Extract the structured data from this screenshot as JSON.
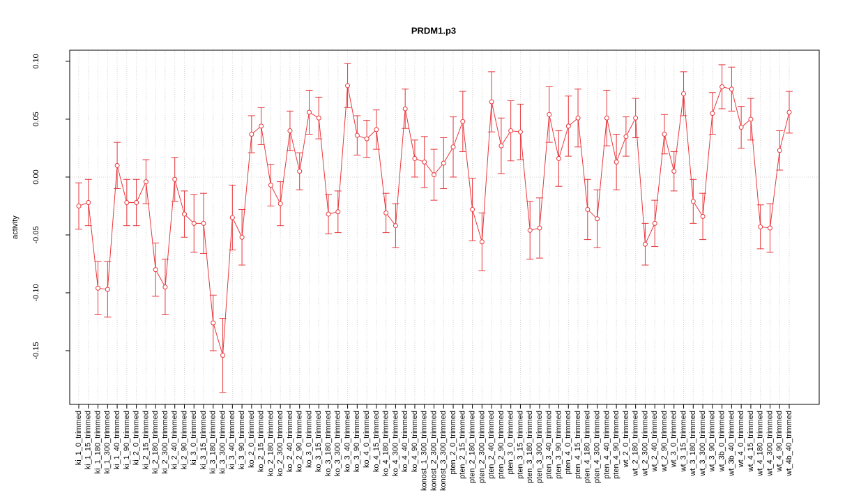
{
  "chart_data": {
    "type": "line",
    "title": "PRDM1.p3",
    "y_label": "activity",
    "categories": [
      "ki_1_0_trimmed",
      "ki_1_15_trimmed",
      "ki_1_180_trimmed",
      "ki_1_300_trimmed",
      "ki_1_40_trimmed",
      "ki_1_90_trimmed",
      "ki_2_0_trimmed",
      "ki_2_15_trimmed",
      "ki_2_180_trimmed",
      "ki_2_300_trimmed",
      "ki_2_40_trimmed",
      "ki_2_90_trimmed",
      "ki_3_0_trimmed",
      "ki_3_15_trimmed",
      "ki_3_180_trimmed",
      "ki_3_300_trimmed",
      "ki_3_40_trimmed",
      "ki_3_90_trimmed",
      "ko_2_0_trimmed",
      "ko_2_15_trimmed",
      "ko_2_180_trimmed",
      "ko_2_300_trimmed",
      "ko_2_40_trimmed",
      "ko_2_90_trimmed",
      "ko_3_0_trimmed",
      "ko_3_15_trimmed",
      "ko_3_180_trimmed",
      "ko_3_300_trimmed",
      "ko_3_40_trimmed",
      "ko_3_90_trimmed",
      "ko_4_0_trimmed",
      "ko_4_15_trimmed",
      "ko_4_180_trimmed",
      "ko_4_300_trimmed",
      "ko_4_40_trimmed",
      "ko_4_90_trimmed",
      "konost_1_300_trimmed",
      "konost_2_300_trimmed",
      "konost_3_300_trimmed",
      "pten_2_0_trimmed",
      "pten_2_15_trimmed",
      "pten_2_180_trimmed",
      "pten_2_300_trimmed",
      "pten_2_40_trimmed",
      "pten_2_90_trimmed",
      "pten_3_0_trimmed",
      "pten_3_15_trimmed",
      "pten_3_180_trimmed",
      "pten_3_300_trimmed",
      "pten_3_40_trimmed",
      "pten_3_90_trimmed",
      "pten_4_0_trimmed",
      "pten_4_15_trimmed",
      "pten_4_180_trimmed",
      "pten_4_300_trimmed",
      "pten_4_40_trimmed",
      "pten_4_90_trimmed",
      "wt_2_0_trimmed",
      "wt_2_180_trimmed",
      "wt_2_300_trimmed",
      "wt_2_40_trimmed",
      "wt_2_90_trimmed",
      "wt_3_0_trimmed",
      "wt_3_15_trimmed",
      "wt_3_180_trimmed",
      "wt_3_300_trimmed",
      "wt_3_90_trimmed",
      "wt_3b_0_trimmed",
      "wt_3b_40_trimmed",
      "wt_4_0_trimmed",
      "wt_4_15_trimmed",
      "wt_4_180_trimmed",
      "wt_4_300_trimmed",
      "wt_4_90_trimmed",
      "wt_4b_40_trimmed"
    ],
    "series": [
      {
        "color": "#e8363b",
        "values": [
          -0.025,
          -0.022,
          -0.096,
          -0.097,
          0.01,
          -0.022,
          -0.022,
          -0.004,
          -0.08,
          -0.095,
          -0.002,
          -0.032,
          -0.04,
          -0.04,
          -0.126,
          -0.154,
          -0.035,
          -0.052,
          0.037,
          0.044,
          -0.007,
          -0.023,
          0.04,
          0.005,
          0.056,
          0.051,
          -0.032,
          -0.03,
          0.079,
          0.036,
          0.033,
          0.041,
          -0.031,
          -0.042,
          0.059,
          0.016,
          0.013,
          0.002,
          0.012,
          0.026,
          0.048,
          -0.028,
          -0.056,
          0.065,
          0.027,
          0.04,
          0.039,
          -0.046,
          -0.044,
          0.054,
          0.016,
          0.044,
          0.051,
          -0.028,
          -0.036,
          0.051,
          0.013,
          0.035,
          0.051,
          -0.058,
          -0.04,
          0.037,
          0.005,
          0.072,
          -0.021,
          -0.034,
          0.055,
          0.078,
          0.076,
          0.043,
          0.05,
          -0.043,
          -0.044,
          0.023,
          0.056
        ],
        "errors": [
          0.02,
          0.02,
          0.023,
          0.024,
          0.02,
          0.02,
          0.02,
          0.019,
          0.023,
          0.024,
          0.019,
          0.02,
          0.025,
          0.026,
          0.024,
          0.032,
          0.028,
          0.024,
          0.016,
          0.016,
          0.018,
          0.019,
          0.017,
          0.016,
          0.019,
          0.018,
          0.017,
          0.018,
          0.019,
          0.017,
          0.016,
          0.017,
          0.017,
          0.019,
          0.017,
          0.016,
          0.022,
          0.022,
          0.022,
          0.026,
          0.026,
          0.027,
          0.025,
          0.026,
          0.024,
          0.026,
          0.024,
          0.025,
          0.026,
          0.024,
          0.024,
          0.026,
          0.025,
          0.026,
          0.025,
          0.024,
          0.024,
          0.017,
          0.017,
          0.018,
          0.02,
          0.017,
          0.017,
          0.019,
          0.019,
          0.02,
          0.018,
          0.019,
          0.019,
          0.018,
          0.018,
          0.019,
          0.021,
          0.017,
          0.018
        ]
      }
    ],
    "ylim": [
      -0.1964,
      0.1096
    ],
    "yticks": [
      {
        "value": -0.15,
        "label": "-0.15"
      },
      {
        "value": -0.1,
        "label": "-0.10"
      },
      {
        "value": -0.05,
        "label": "-0.05"
      },
      {
        "value": 0,
        "label": "0.00"
      },
      {
        "value": 0.05,
        "label": "0.05"
      },
      {
        "value": 0.1,
        "label": "0.10"
      }
    ],
    "grid": true,
    "reference_line": 0
  }
}
